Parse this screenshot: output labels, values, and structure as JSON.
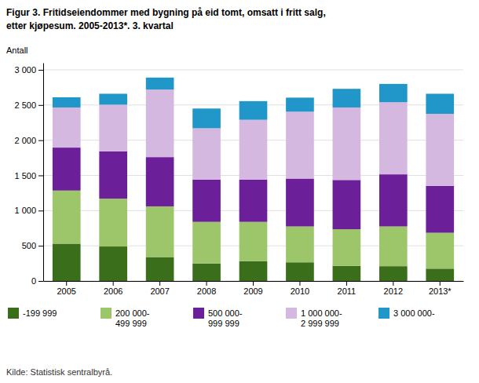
{
  "chart_data": {
    "type": "bar",
    "stacked": true,
    "title": "Figur 3. Fritidseiendommer med bygning på eid tomt, omsatt i fritt salg,",
    "subtitle": "etter kjøpesum. 2005-2013*. 3. kvartal",
    "y_label": "Antall",
    "annotations": [
      "Kilde: Statistisk sentralbyrå."
    ],
    "categories": [
      "2005",
      "2006",
      "2007",
      "2008",
      "2009",
      "2010",
      "2011",
      "2012",
      "2013*"
    ],
    "series": [
      {
        "name": "-199 999",
        "color": "#3a6e1a",
        "values": [
          530,
          490,
          340,
          250,
          280,
          265,
          215,
          210,
          175
        ]
      },
      {
        "name": "200 000-\n499 999",
        "color": "#9dc66b",
        "values": [
          755,
          680,
          720,
          590,
          560,
          510,
          520,
          565,
          510
        ]
      },
      {
        "name": "500 000-\n999 999",
        "color": "#6b1f99",
        "values": [
          610,
          670,
          700,
          600,
          600,
          680,
          700,
          740,
          665
        ]
      },
      {
        "name": "1 000 000-\n2 999 999",
        "color": "#d4b8e0",
        "values": [
          570,
          665,
          960,
          730,
          850,
          950,
          1030,
          1025,
          1025
        ]
      },
      {
        "name": "3 000 000-",
        "color": "#2196c8",
        "values": [
          145,
          155,
          170,
          280,
          265,
          200,
          265,
          260,
          285
        ]
      }
    ],
    "ylim": [
      0,
      3100
    ],
    "yticks": [
      0,
      500,
      {
        "value": 1000,
        "label": "1 000"
      },
      {
        "value": 1500,
        "label": "1 500"
      },
      {
        "value": 2000,
        "label": "2 000"
      },
      {
        "value": 2500,
        "label": "2 500"
      },
      {
        "value": 3000,
        "label": "3 000"
      }
    ],
    "grid": true,
    "legend": "bottom"
  }
}
